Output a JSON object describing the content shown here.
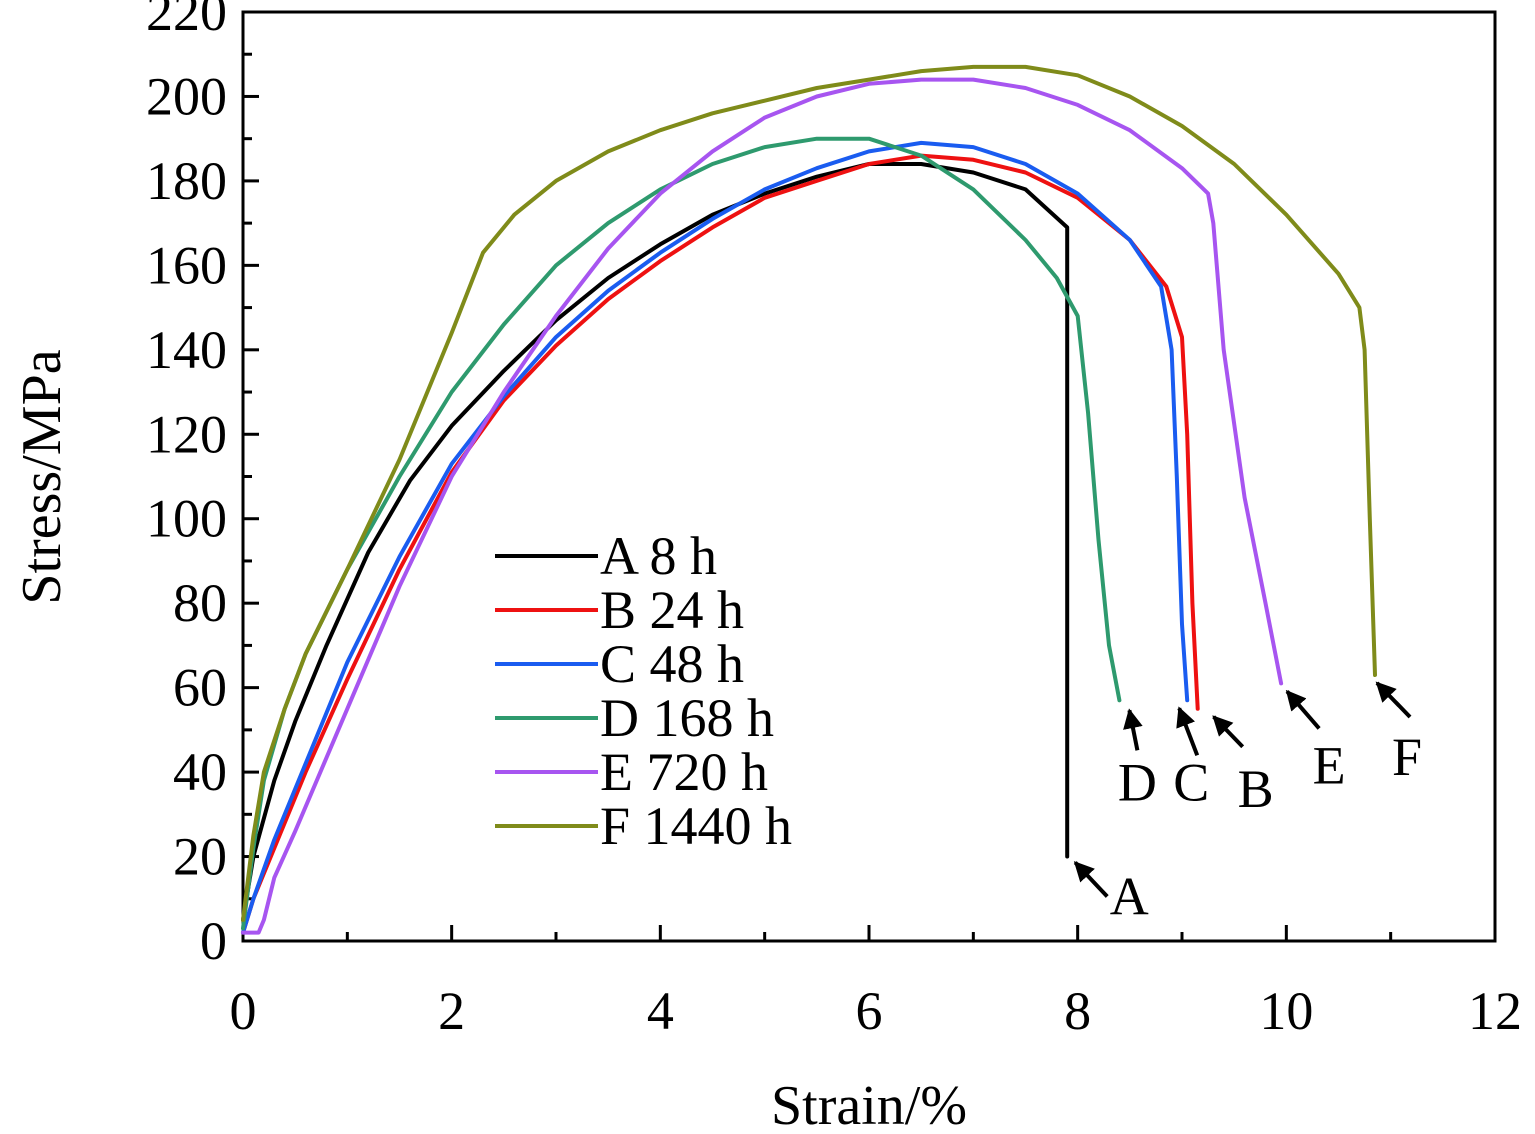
{
  "chart_data": {
    "type": "line",
    "xlabel": "Strain/%",
    "ylabel": "Stress/MPa",
    "xlim": [
      0,
      12
    ],
    "ylim": [
      0,
      220
    ],
    "xticks": [
      "0",
      "2",
      "4",
      "6",
      "8",
      "10",
      "12"
    ],
    "yticks": [
      "0",
      "20",
      "40",
      "60",
      "80",
      "100",
      "120",
      "140",
      "160",
      "180",
      "200",
      "220"
    ],
    "grid": false,
    "legend_position": "center-left",
    "series": [
      {
        "name": "A 8 h",
        "end_label": "A",
        "color": "#000000",
        "x": [
          0,
          0.1,
          0.3,
          0.5,
          0.8,
          1.2,
          1.6,
          2.0,
          2.5,
          3.0,
          3.5,
          4.0,
          4.5,
          5.0,
          5.5,
          6.0,
          6.5,
          7.0,
          7.5,
          7.9,
          7.9
        ],
        "y": [
          5,
          20,
          38,
          52,
          70,
          92,
          109,
          122,
          135,
          147,
          157,
          165,
          172,
          177,
          181,
          184,
          184,
          182,
          178,
          169,
          20
        ]
      },
      {
        "name": "B 24 h",
        "end_label": "B",
        "color": "#ee1111",
        "x": [
          0,
          0.1,
          0.3,
          0.6,
          1.0,
          1.5,
          2.0,
          2.5,
          3.0,
          3.5,
          4.0,
          4.5,
          5.0,
          5.5,
          6.0,
          6.5,
          7.0,
          7.5,
          8.0,
          8.5,
          8.85,
          9.0,
          9.05,
          9.1,
          9.15
        ],
        "y": [
          2,
          10,
          22,
          40,
          62,
          88,
          111,
          128,
          141,
          152,
          161,
          169,
          176,
          180,
          184,
          186,
          185,
          182,
          176,
          166,
          155,
          143,
          120,
          80,
          55
        ]
      },
      {
        "name": "C 48 h",
        "end_label": "C",
        "color": "#1a5cf0",
        "x": [
          0,
          0.1,
          0.3,
          0.6,
          1.0,
          1.5,
          2.0,
          2.5,
          3.0,
          3.5,
          4.0,
          4.5,
          5.0,
          5.5,
          6.0,
          6.5,
          7.0,
          7.5,
          8.0,
          8.5,
          8.8,
          8.9,
          8.95,
          9.0,
          9.05
        ],
        "y": [
          2,
          10,
          24,
          42,
          66,
          91,
          113,
          129,
          143,
          154,
          163,
          171,
          178,
          183,
          187,
          189,
          188,
          184,
          177,
          166,
          155,
          140,
          110,
          75,
          57
        ]
      },
      {
        "name": "D 168 h",
        "end_label": "D",
        "color": "#2e9a6e",
        "x": [
          0,
          0.1,
          0.2,
          0.4,
          0.6,
          1.0,
          1.5,
          2.0,
          2.5,
          3.0,
          3.5,
          4.0,
          4.5,
          5.0,
          5.5,
          6.0,
          6.5,
          7.0,
          7.5,
          7.8,
          8.0,
          8.1,
          8.2,
          8.3,
          8.4
        ],
        "y": [
          3,
          22,
          38,
          55,
          68,
          88,
          110,
          130,
          146,
          160,
          170,
          178,
          184,
          188,
          190,
          190,
          186,
          178,
          166,
          157,
          148,
          125,
          95,
          70,
          57
        ]
      },
      {
        "name": "E 720 h",
        "end_label": "E",
        "color": "#a755f0",
        "x": [
          0,
          0.15,
          0.2,
          0.3,
          0.5,
          1.0,
          1.5,
          2.0,
          2.5,
          3.0,
          3.5,
          4.0,
          4.5,
          5.0,
          5.5,
          6.0,
          6.5,
          7.0,
          7.5,
          8.0,
          8.5,
          9.0,
          9.25,
          9.3,
          9.4,
          9.6,
          9.8,
          9.95
        ],
        "y": [
          2,
          2,
          5,
          15,
          26,
          55,
          84,
          110,
          130,
          148,
          164,
          177,
          187,
          195,
          200,
          203,
          204,
          204,
          202,
          198,
          192,
          183,
          177,
          170,
          140,
          105,
          80,
          61
        ]
      },
      {
        "name": "F 1440 h",
        "end_label": "F",
        "color": "#7f8b1a",
        "x": [
          0,
          0.1,
          0.2,
          0.4,
          0.6,
          1.0,
          1.5,
          2.0,
          2.3,
          2.6,
          3.0,
          3.5,
          4.0,
          4.5,
          5.0,
          5.5,
          6.0,
          6.5,
          7.0,
          7.5,
          8.0,
          8.5,
          9.0,
          9.5,
          10.0,
          10.5,
          10.7,
          10.75,
          10.8,
          10.85
        ],
        "y": [
          5,
          25,
          40,
          55,
          68,
          88,
          114,
          144,
          163,
          172,
          180,
          187,
          192,
          196,
          199,
          202,
          204,
          206,
          207,
          207,
          205,
          200,
          193,
          184,
          172,
          158,
          150,
          140,
          100,
          63
        ]
      }
    ]
  }
}
